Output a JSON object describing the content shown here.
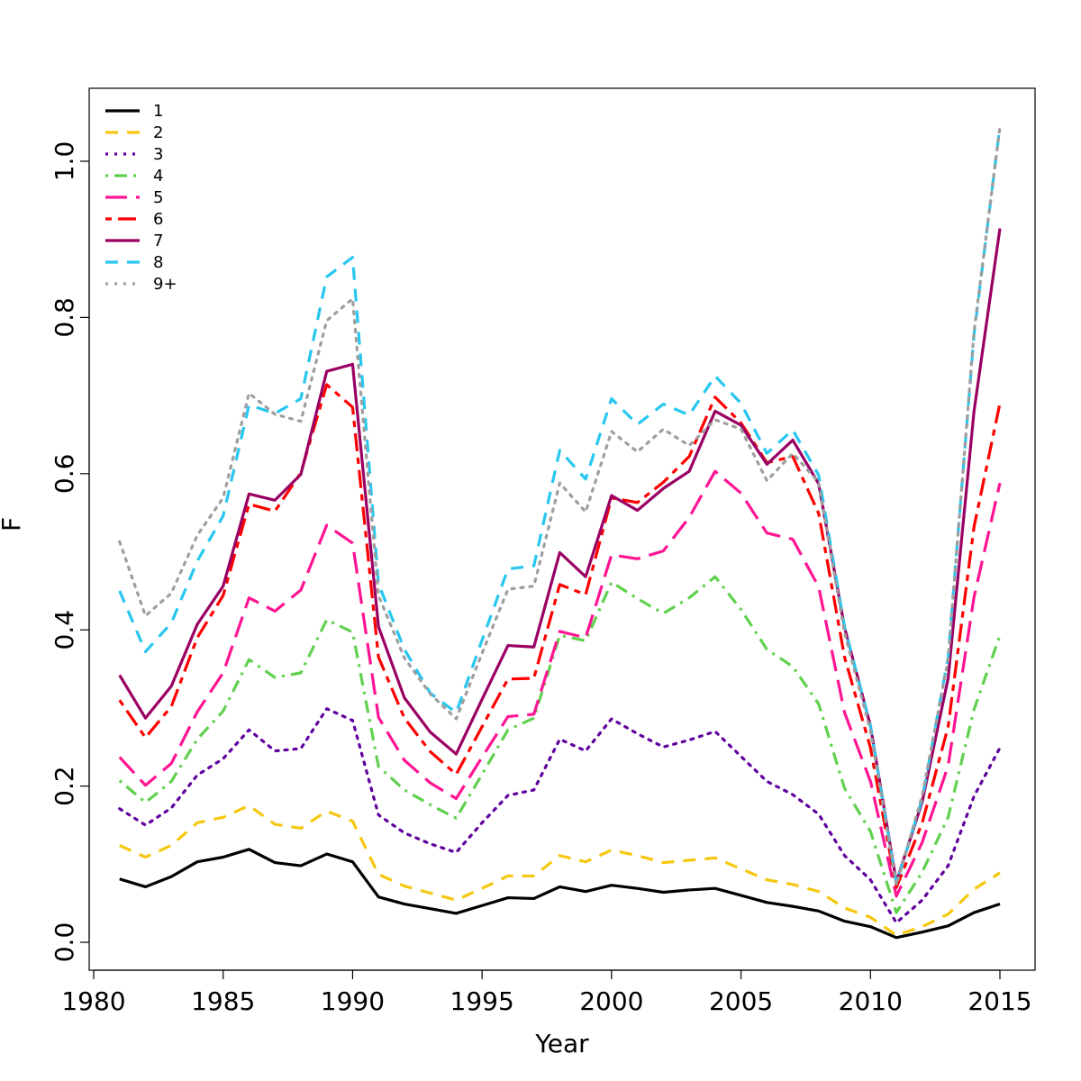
{
  "chart_data": {
    "type": "line",
    "title": "",
    "xlabel": "Year",
    "ylabel": "F",
    "xlim": [
      1980,
      2015
    ],
    "ylim": [
      0.0,
      1.0
    ],
    "xticks": [
      "1980",
      "1985",
      "1990",
      "1995",
      "2000",
      "2005",
      "2010",
      "2015"
    ],
    "yticks": [
      "0.0",
      "0.2",
      "0.4",
      "0.6",
      "0.8",
      "1.0"
    ],
    "legend_position": "top-left",
    "grid": false,
    "x": [
      1981,
      1982,
      1983,
      1984,
      1985,
      1986,
      1987,
      1988,
      1989,
      1990,
      1991,
      1992,
      1993,
      1994,
      1995,
      1996,
      1997,
      1998,
      1999,
      2000,
      2001,
      2002,
      2003,
      2004,
      2005,
      2006,
      2007,
      2008,
      2009,
      2010,
      2011,
      2012,
      2013,
      2014,
      2015
    ],
    "series": [
      {
        "name": "1",
        "color": "#000000",
        "dash": "solid",
        "values": [
          0.081,
          0.071,
          0.084,
          0.103,
          0.109,
          0.119,
          0.102,
          0.098,
          0.113,
          0.103,
          0.058,
          0.049,
          0.043,
          0.037,
          0.047,
          0.057,
          0.056,
          0.071,
          0.065,
          0.073,
          0.069,
          0.064,
          0.067,
          0.069,
          0.06,
          0.051,
          0.046,
          0.04,
          0.027,
          0.02,
          0.006,
          0.013,
          0.021,
          0.038,
          0.049
        ]
      },
      {
        "name": "2",
        "color": "#F5C710",
        "dash": "dashed",
        "values": [
          0.124,
          0.109,
          0.124,
          0.153,
          0.16,
          0.175,
          0.151,
          0.146,
          0.168,
          0.155,
          0.087,
          0.072,
          0.063,
          0.054,
          0.069,
          0.085,
          0.085,
          0.111,
          0.103,
          0.118,
          0.111,
          0.102,
          0.105,
          0.108,
          0.094,
          0.08,
          0.074,
          0.065,
          0.044,
          0.032,
          0.009,
          0.02,
          0.036,
          0.068,
          0.089
        ]
      },
      {
        "name": "3",
        "color": "#61009E",
        "dash": "dotted",
        "values": [
          0.171,
          0.15,
          0.172,
          0.214,
          0.235,
          0.272,
          0.245,
          0.248,
          0.299,
          0.284,
          0.163,
          0.14,
          0.126,
          0.115,
          0.153,
          0.188,
          0.195,
          0.26,
          0.245,
          0.286,
          0.267,
          0.25,
          0.259,
          0.27,
          0.238,
          0.206,
          0.189,
          0.164,
          0.111,
          0.08,
          0.025,
          0.054,
          0.098,
          0.187,
          0.249
        ]
      },
      {
        "name": "4",
        "color": "#61D04F",
        "dash": "dotdash",
        "values": [
          0.207,
          0.179,
          0.206,
          0.26,
          0.296,
          0.362,
          0.339,
          0.345,
          0.413,
          0.397,
          0.225,
          0.195,
          0.176,
          0.159,
          0.215,
          0.272,
          0.287,
          0.393,
          0.386,
          0.461,
          0.44,
          0.421,
          0.441,
          0.468,
          0.426,
          0.375,
          0.353,
          0.305,
          0.197,
          0.142,
          0.038,
          0.09,
          0.16,
          0.298,
          0.393
        ]
      },
      {
        "name": "5",
        "color": "#FF1493",
        "dash": "longdash",
        "values": [
          0.237,
          0.201,
          0.229,
          0.295,
          0.345,
          0.441,
          0.424,
          0.451,
          0.534,
          0.511,
          0.288,
          0.233,
          0.204,
          0.184,
          0.237,
          0.289,
          0.292,
          0.398,
          0.39,
          0.496,
          0.491,
          0.501,
          0.544,
          0.603,
          0.575,
          0.524,
          0.516,
          0.455,
          0.294,
          0.206,
          0.059,
          0.128,
          0.226,
          0.442,
          0.588
        ]
      },
      {
        "name": "6",
        "color": "#FF0000",
        "dash": "twodash",
        "values": [
          0.31,
          0.262,
          0.302,
          0.39,
          0.444,
          0.561,
          0.552,
          0.601,
          0.714,
          0.685,
          0.365,
          0.287,
          0.244,
          0.215,
          0.276,
          0.337,
          0.338,
          0.458,
          0.445,
          0.569,
          0.563,
          0.589,
          0.622,
          0.698,
          0.665,
          0.614,
          0.622,
          0.549,
          0.365,
          0.249,
          0.07,
          0.153,
          0.276,
          0.532,
          0.69
        ]
      },
      {
        "name": "7",
        "color": "#9A0063",
        "dash": "solid",
        "values": [
          0.342,
          0.287,
          0.328,
          0.407,
          0.456,
          0.574,
          0.566,
          0.599,
          0.731,
          0.74,
          0.404,
          0.313,
          0.269,
          0.241,
          0.311,
          0.38,
          0.378,
          0.499,
          0.468,
          0.572,
          0.553,
          0.581,
          0.603,
          0.68,
          0.662,
          0.612,
          0.643,
          0.587,
          0.403,
          0.277,
          0.077,
          0.18,
          0.338,
          0.68,
          0.914
        ]
      },
      {
        "name": "8",
        "color": "#28C7F0",
        "dash": "dashed",
        "values": [
          0.45,
          0.372,
          0.409,
          0.488,
          0.546,
          0.688,
          0.677,
          0.696,
          0.852,
          0.877,
          0.459,
          0.375,
          0.319,
          0.294,
          0.387,
          0.478,
          0.482,
          0.63,
          0.593,
          0.696,
          0.663,
          0.689,
          0.675,
          0.725,
          0.69,
          0.626,
          0.656,
          0.598,
          0.404,
          0.277,
          0.075,
          0.184,
          0.365,
          0.778,
          1.045
        ]
      },
      {
        "name": "9+",
        "color": "#9E9E9E",
        "dash": "dotted",
        "values": [
          0.513,
          0.418,
          0.447,
          0.521,
          0.569,
          0.703,
          0.676,
          0.667,
          0.796,
          0.824,
          0.444,
          0.364,
          0.318,
          0.286,
          0.37,
          0.452,
          0.456,
          0.588,
          0.551,
          0.654,
          0.628,
          0.657,
          0.636,
          0.669,
          0.657,
          0.591,
          0.626,
          0.589,
          0.396,
          0.271,
          0.073,
          0.188,
          0.362,
          0.782,
          1.044
        ]
      }
    ]
  }
}
